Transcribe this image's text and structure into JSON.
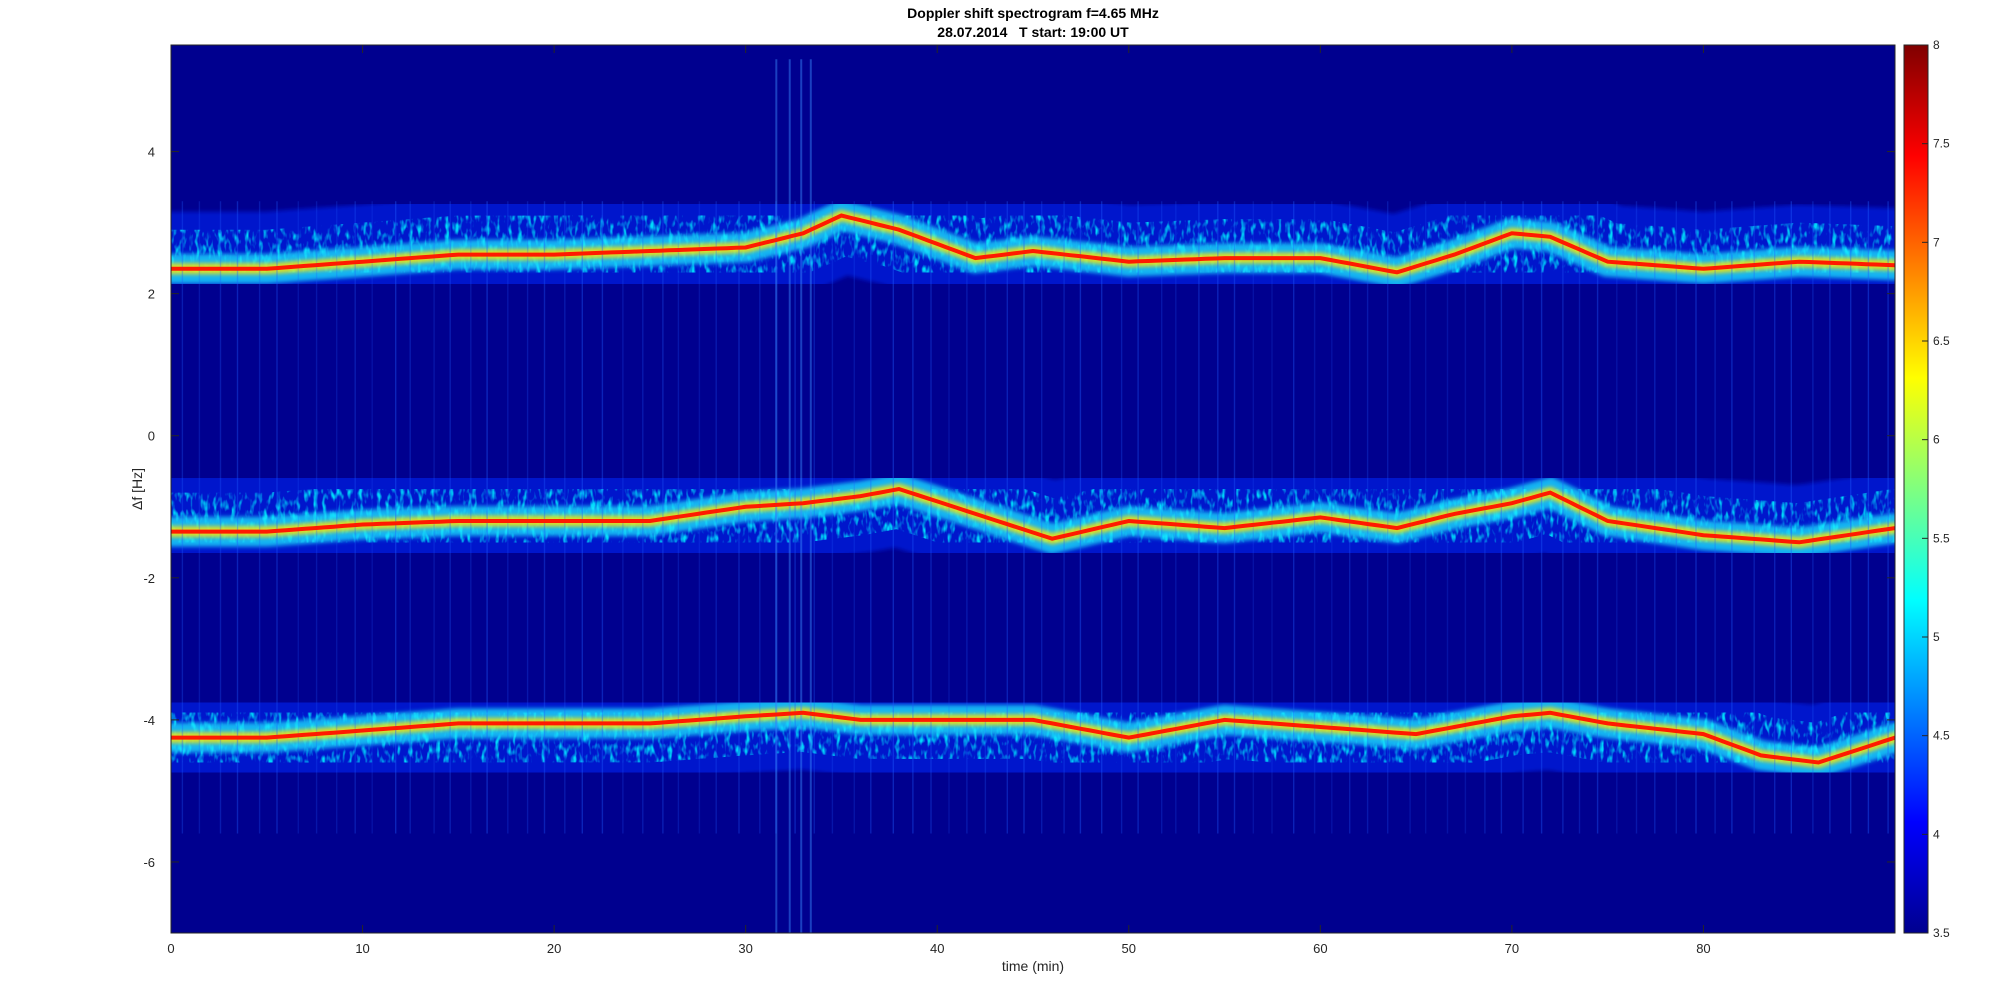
{
  "chart_data": {
    "type": "heatmap",
    "title": "Doppler shift spectrogram f=4.65 MHz",
    "subtitle": "28.07.2014   T start: 19:00 UT",
    "xlabel": "time (min)",
    "ylabel": "Δf [Hz]",
    "xlim": [
      0,
      90
    ],
    "ylim": [
      -7,
      5.5
    ],
    "xticks": [
      0,
      10,
      20,
      30,
      40,
      50,
      60,
      70,
      80
    ],
    "yticks": [
      -6,
      -4,
      -2,
      0,
      2,
      4
    ],
    "grid": false,
    "colormap": "jet",
    "background_color": "#00008f",
    "colorbar": {
      "range": [
        3.5,
        8
      ],
      "ticks": [
        3.5,
        4,
        4.5,
        5,
        5.5,
        6,
        6.5,
        7,
        7.5,
        8
      ],
      "location": "right"
    },
    "series": [
      {
        "time_min": [
          0,
          5,
          10,
          15,
          20,
          25,
          30,
          33,
          35,
          38,
          42,
          45,
          50,
          55,
          60,
          64,
          67,
          70,
          72,
          75,
          80,
          85,
          90
        ],
        "doppler_hz": [
          2.35,
          2.35,
          2.45,
          2.55,
          2.55,
          2.6,
          2.65,
          2.85,
          3.1,
          2.9,
          2.5,
          2.6,
          2.45,
          2.5,
          2.5,
          2.3,
          2.55,
          2.85,
          2.8,
          2.45,
          2.35,
          2.45,
          2.4
        ]
      },
      {
        "time_min": [
          0,
          5,
          10,
          15,
          20,
          25,
          30,
          33,
          36,
          38,
          42,
          46,
          50,
          55,
          60,
          64,
          67,
          70,
          72,
          75,
          80,
          85,
          90
        ],
        "doppler_hz": [
          -1.35,
          -1.35,
          -1.25,
          -1.2,
          -1.2,
          -1.2,
          -1.0,
          -0.95,
          -0.85,
          -0.75,
          -1.1,
          -1.45,
          -1.2,
          -1.3,
          -1.15,
          -1.3,
          -1.1,
          -0.95,
          -0.8,
          -1.2,
          -1.4,
          -1.5,
          -1.3
        ]
      },
      {
        "time_min": [
          0,
          5,
          10,
          15,
          20,
          25,
          30,
          33,
          36,
          40,
          45,
          50,
          55,
          60,
          65,
          70,
          72,
          75,
          80,
          83,
          86,
          90
        ],
        "doppler_hz": [
          -4.25,
          -4.25,
          -4.15,
          -4.05,
          -4.05,
          -4.05,
          -3.95,
          -3.9,
          -4.0,
          -4.0,
          -4.0,
          -4.25,
          -4.0,
          -4.1,
          -4.2,
          -3.95,
          -3.9,
          -4.05,
          -4.2,
          -4.5,
          -4.6,
          -4.25
        ]
      }
    ]
  }
}
